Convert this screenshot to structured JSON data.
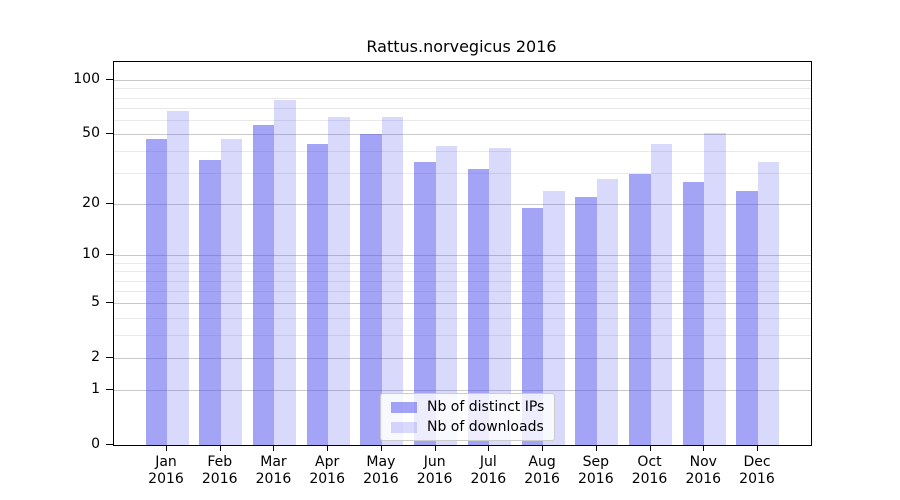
{
  "chart_data": {
    "type": "bar",
    "title": "Rattus.norvegicus 2016",
    "categories": [
      "Jan 2016",
      "Feb 2016",
      "Mar 2016",
      "Apr 2016",
      "May 2016",
      "Jun 2016",
      "Jul 2016",
      "Aug 2016",
      "Sep 2016",
      "Oct 2016",
      "Nov 2016",
      "Dec 2016"
    ],
    "series": [
      {
        "name": "Nb of distinct IPs",
        "color": "#a4a4f4",
        "fill": "rgba(80,80,240,0.52)",
        "values": [
          47,
          36,
          56,
          44,
          50,
          35,
          32,
          19,
          22,
          30,
          27,
          24
        ]
      },
      {
        "name": "Nb of downloads",
        "color": "#d9d9f9",
        "fill": "rgba(80,80,240,0.22)",
        "values": [
          67,
          47,
          78,
          62,
          62,
          43,
          42,
          24,
          28,
          44,
          51,
          35
        ]
      }
    ],
    "yscale": "log1p",
    "ylim": [
      0,
      126
    ],
    "y_tick_values": [
      100,
      50,
      20,
      10,
      5,
      2,
      1,
      0
    ],
    "y_minor_gridline_values": [
      3,
      4,
      6,
      7,
      8,
      9,
      30,
      40,
      60,
      70,
      80,
      90
    ],
    "grid": true,
    "legend_position": "lower center"
  },
  "colors": {
    "background": "#ffffff",
    "axis": "#000000",
    "text": "#000000",
    "major_grid": "#c9c9c9",
    "minor_grid": "#e9e9e9",
    "legend_bg": "rgba(255,255,255,0.8)",
    "legend_border": "#cccccc"
  }
}
